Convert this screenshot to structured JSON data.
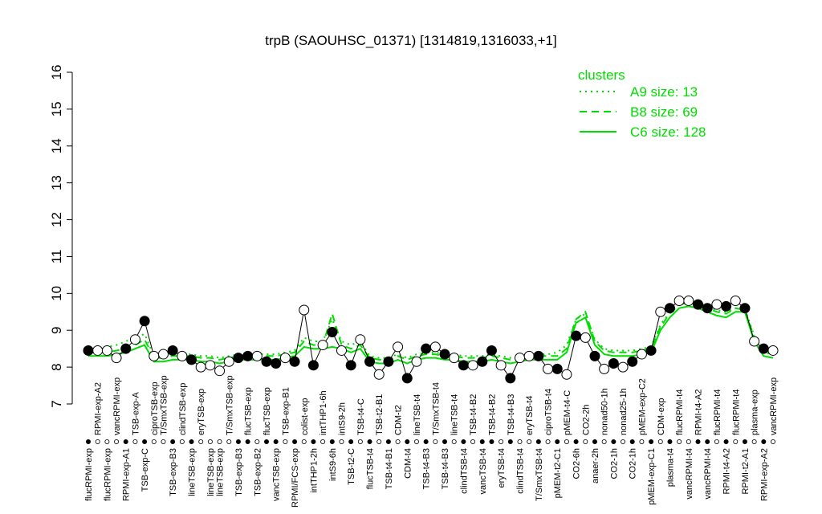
{
  "chart_data": {
    "type": "line",
    "title": "trpB (SAOUHSC_01371) [1314819,1316033,+1]",
    "xlabel": "",
    "ylabel": "",
    "ylim": [
      7,
      16
    ],
    "yticks": [
      7,
      8,
      9,
      10,
      11,
      12,
      13,
      14,
      15,
      16
    ],
    "grid": false,
    "legend": {
      "title": "clusters",
      "placement": "top-right",
      "entries": [
        {
          "label": "A9 size: 13",
          "style": "dotted"
        },
        {
          "label": "B8 size: 69",
          "style": "dashed"
        },
        {
          "label": "C6 size: 128",
          "style": "solid"
        }
      ]
    },
    "colors": {
      "cluster": "#00dd00",
      "point_fill": "#000000",
      "point_open": "#ffffff"
    },
    "samples": [
      {
        "label": "flucRPMI-exp",
        "row": "bottom",
        "value": 8.45,
        "filled": true
      },
      {
        "label": "RPMI-exp-A2",
        "row": "top",
        "value": 8.45,
        "filled": false
      },
      {
        "label": "flucRPMI-exp",
        "row": "bottom",
        "value": 8.45,
        "filled": false
      },
      {
        "label": "vancRPMI-exp",
        "row": "top",
        "value": 8.25,
        "filled": false
      },
      {
        "label": "RPMI-exp-A1",
        "row": "bottom",
        "value": 8.5,
        "filled": true
      },
      {
        "label": "TSB-exp-A",
        "row": "top",
        "value": 8.75,
        "filled": false
      },
      {
        "label": "TSB-exp-C",
        "row": "bottom",
        "value": 9.25,
        "filled": true
      },
      {
        "label": "ciproTSB-exp",
        "row": "top",
        "value": 8.3,
        "filled": false
      },
      {
        "label": "T/SmxTSB-exp",
        "row": "top",
        "value": 8.35,
        "filled": false
      },
      {
        "label": "TSB-exp-B3",
        "row": "bottom",
        "value": 8.45,
        "filled": true
      },
      {
        "label": "clindTSB-exp",
        "row": "top",
        "value": 8.3,
        "filled": false
      },
      {
        "label": "lineTSB-exp",
        "row": "bottom",
        "value": 8.2,
        "filled": true
      },
      {
        "label": "eryTSB-exp",
        "row": "top",
        "value": 8.0,
        "filled": false
      },
      {
        "label": "lineTSB-exp",
        "row": "bottom",
        "value": 8.05,
        "filled": false
      },
      {
        "label": "lineTSB-exp",
        "row": "bottom",
        "value": 7.9,
        "filled": false
      },
      {
        "label": "T/SmxTSB-exp",
        "row": "top",
        "value": 8.15,
        "filled": false
      },
      {
        "label": "TSB-exp-B3",
        "row": "bottom",
        "value": 8.25,
        "filled": true
      },
      {
        "label": "flucTSB-exp",
        "row": "top",
        "value": 8.3,
        "filled": true
      },
      {
        "label": "TSB-exp-B2",
        "row": "bottom",
        "value": 8.3,
        "filled": false
      },
      {
        "label": "flucTSB-exp",
        "row": "top",
        "value": 8.15,
        "filled": true
      },
      {
        "label": "vancTSB-exp",
        "row": "bottom",
        "value": 8.1,
        "filled": true
      },
      {
        "label": "TSB-exp-B1",
        "row": "top",
        "value": 8.25,
        "filled": false
      },
      {
        "label": "RPMI/FCS-exp",
        "row": "bottom",
        "value": 8.15,
        "filled": true
      },
      {
        "label": "colist-exp",
        "row": "top",
        "value": 9.55,
        "filled": false
      },
      {
        "label": "intTHP1-2h",
        "row": "bottom",
        "value": 8.05,
        "filled": true
      },
      {
        "label": "intTHP1-6h",
        "row": "top",
        "value": 8.6,
        "filled": false
      },
      {
        "label": "intS9-6h",
        "row": "bottom",
        "value": 8.95,
        "filled": true
      },
      {
        "label": "intS9-2h",
        "row": "top",
        "value": 8.45,
        "filled": false
      },
      {
        "label": "TSB-t2-C",
        "row": "bottom",
        "value": 8.05,
        "filled": true
      },
      {
        "label": "TSB-t4-C",
        "row": "top",
        "value": 8.75,
        "filled": false
      },
      {
        "label": "flucTSB-t4",
        "row": "bottom",
        "value": 8.15,
        "filled": true
      },
      {
        "label": "TSB-t2-B1",
        "row": "top",
        "value": 7.8,
        "filled": false
      },
      {
        "label": "TSB-t4-B1",
        "row": "bottom",
        "value": 8.15,
        "filled": true
      },
      {
        "label": "CDM-t2",
        "row": "top",
        "value": 8.55,
        "filled": false
      },
      {
        "label": "CDM-t4",
        "row": "bottom",
        "value": 7.7,
        "filled": true
      },
      {
        "label": "lineTSB-t4",
        "row": "top",
        "value": 8.15,
        "filled": false
      },
      {
        "label": "TSB-t4-B3",
        "row": "bottom",
        "value": 8.5,
        "filled": true
      },
      {
        "label": "T/SmxTSB-t4",
        "row": "top",
        "value": 8.55,
        "filled": false
      },
      {
        "label": "TSB-t4-B3",
        "row": "bottom",
        "value": 8.35,
        "filled": true
      },
      {
        "label": "lineTSB-t4",
        "row": "top",
        "value": 8.25,
        "filled": false
      },
      {
        "label": "clindTSB-t4",
        "row": "bottom",
        "value": 8.05,
        "filled": true
      },
      {
        "label": "TSB-t4-B2",
        "row": "top",
        "value": 8.05,
        "filled": false
      },
      {
        "label": "vancTSB-t4",
        "row": "bottom",
        "value": 8.15,
        "filled": true
      },
      {
        "label": "TSB-t4-B2",
        "row": "top",
        "value": 8.45,
        "filled": true
      },
      {
        "label": "eryTSB-t4",
        "row": "bottom",
        "value": 8.05,
        "filled": false
      },
      {
        "label": "TSB-t4-B3",
        "row": "top",
        "value": 7.7,
        "filled": true
      },
      {
        "label": "clindTSB-t4",
        "row": "bottom",
        "value": 8.25,
        "filled": false
      },
      {
        "label": "eryTSB-t4",
        "row": "top",
        "value": 8.3,
        "filled": false
      },
      {
        "label": "T/SmxTSB-t4",
        "row": "bottom",
        "value": 8.3,
        "filled": true
      },
      {
        "label": "ciproTSB-t4",
        "row": "top",
        "value": 7.95,
        "filled": false
      },
      {
        "label": "pMEM-t2-C1",
        "row": "bottom",
        "value": 7.95,
        "filled": true
      },
      {
        "label": "pMEM-t4-C",
        "row": "top",
        "value": 7.8,
        "filled": false
      },
      {
        "label": "CO2-6h",
        "row": "bottom",
        "value": 8.85,
        "filled": true
      },
      {
        "label": "CO2-2h",
        "row": "top",
        "value": 8.8,
        "filled": false
      },
      {
        "label": "anaer-2h",
        "row": "bottom",
        "value": 8.3,
        "filled": true
      },
      {
        "label": "nonad50-1h",
        "row": "top",
        "value": 7.95,
        "filled": false
      },
      {
        "label": "CO2-1h",
        "row": "bottom",
        "value": 8.1,
        "filled": true
      },
      {
        "label": "nonad25-1h",
        "row": "top",
        "value": 8.0,
        "filled": false
      },
      {
        "label": "CO2-1h",
        "row": "bottom",
        "value": 8.15,
        "filled": true
      },
      {
        "label": "pMEM-exp-C2",
        "row": "top",
        "value": 8.35,
        "filled": false
      },
      {
        "label": "pMEM-exp-C1",
        "row": "bottom",
        "value": 8.45,
        "filled": true
      },
      {
        "label": "CDM-exp",
        "row": "top",
        "value": 9.5,
        "filled": false
      },
      {
        "label": "plasma-t4",
        "row": "bottom",
        "value": 9.6,
        "filled": true
      },
      {
        "label": "flucRPMI-t4",
        "row": "top",
        "value": 9.8,
        "filled": false
      },
      {
        "label": "vancRPMI-t4",
        "row": "bottom",
        "value": 9.8,
        "filled": false
      },
      {
        "label": "RPMI-t4-A2",
        "row": "top",
        "value": 9.7,
        "filled": true
      },
      {
        "label": "vancRPMI-t4",
        "row": "bottom",
        "value": 9.6,
        "filled": true
      },
      {
        "label": "flucRPMI-t4",
        "row": "top",
        "value": 9.7,
        "filled": false
      },
      {
        "label": "RPMI-t4-A2",
        "row": "bottom",
        "value": 9.65,
        "filled": true
      },
      {
        "label": "flucRPMI-t4",
        "row": "top",
        "value": 9.8,
        "filled": false
      },
      {
        "label": "RPMI-t2-A1",
        "row": "bottom",
        "value": 9.6,
        "filled": true
      },
      {
        "label": "plasma-exp",
        "row": "top",
        "value": 8.7,
        "filled": false
      },
      {
        "label": "RPMI-exp-A2",
        "row": "bottom",
        "value": 8.5,
        "filled": true
      },
      {
        "label": "vancRPMI-exp",
        "row": "top",
        "value": 8.45,
        "filled": false
      }
    ],
    "series": [
      {
        "name": "C6 size: 128",
        "style": "solid",
        "values": [
          8.3,
          8.3,
          8.3,
          8.35,
          8.4,
          8.5,
          8.6,
          8.15,
          8.15,
          8.2,
          8.2,
          8.2,
          8.15,
          8.15,
          8.1,
          8.15,
          8.2,
          8.2,
          8.2,
          8.2,
          8.2,
          8.25,
          8.3,
          8.55,
          8.5,
          8.5,
          8.55,
          8.5,
          8.4,
          8.5,
          8.15,
          8.1,
          8.1,
          8.2,
          8.1,
          8.2,
          8.25,
          8.25,
          8.2,
          8.2,
          8.15,
          8.15,
          8.15,
          8.2,
          8.15,
          8.1,
          8.15,
          8.2,
          8.2,
          8.2,
          8.2,
          8.4,
          9.2,
          9.35,
          8.6,
          8.35,
          8.3,
          8.3,
          8.3,
          8.35,
          8.4,
          9.0,
          9.35,
          9.6,
          9.65,
          9.6,
          9.5,
          9.4,
          9.35,
          9.5,
          9.5,
          8.7,
          8.3,
          8.25
        ]
      },
      {
        "name": "B8 size: 69",
        "style": "dashed",
        "values": [
          8.4,
          8.4,
          8.4,
          8.45,
          8.5,
          8.6,
          8.75,
          8.25,
          8.25,
          8.3,
          8.3,
          8.3,
          8.25,
          8.25,
          8.2,
          8.25,
          8.3,
          8.3,
          8.3,
          8.3,
          8.3,
          8.35,
          8.4,
          8.7,
          8.6,
          8.6,
          9.45,
          8.6,
          8.5,
          8.6,
          8.25,
          8.2,
          8.2,
          8.3,
          8.2,
          8.3,
          8.35,
          8.35,
          8.3,
          8.3,
          8.25,
          8.25,
          8.25,
          8.3,
          8.25,
          8.2,
          8.25,
          8.3,
          8.3,
          8.3,
          8.3,
          8.5,
          9.3,
          9.5,
          8.7,
          8.45,
          8.4,
          8.4,
          8.4,
          8.45,
          8.5,
          9.1,
          9.45,
          9.7,
          9.75,
          9.7,
          9.6,
          9.5,
          9.45,
          9.6,
          9.55,
          8.8,
          8.4,
          8.35
        ]
      },
      {
        "name": "A9 size: 13",
        "style": "dotted",
        "values": [
          8.45,
          8.5,
          8.55,
          8.6,
          8.7,
          8.8,
          8.9,
          8.3,
          8.3,
          8.35,
          8.35,
          8.35,
          8.3,
          8.3,
          8.25,
          8.3,
          8.35,
          8.35,
          8.35,
          8.35,
          8.35,
          8.4,
          8.45,
          8.8,
          8.7,
          8.7,
          9.3,
          8.7,
          8.6,
          8.7,
          8.3,
          8.25,
          8.25,
          8.35,
          8.25,
          8.35,
          8.4,
          8.4,
          8.35,
          8.35,
          8.3,
          8.3,
          8.3,
          8.35,
          8.3,
          8.25,
          8.3,
          8.35,
          8.35,
          8.35,
          8.4,
          8.6,
          9.3,
          9.45,
          8.75,
          8.5,
          8.45,
          8.45,
          8.45,
          8.5,
          8.55,
          9.15,
          9.5,
          9.75,
          9.8,
          9.75,
          9.65,
          9.55,
          9.5,
          9.6,
          9.6,
          8.85,
          8.45,
          8.4
        ]
      }
    ]
  }
}
